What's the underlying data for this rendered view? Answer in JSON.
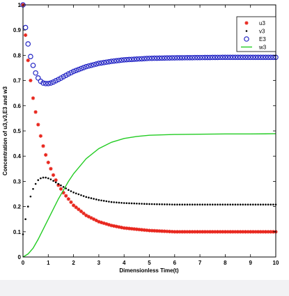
{
  "chart_data": {
    "type": "line",
    "title": "",
    "xlabel": "Dimensionless Time(t)",
    "ylabel": "Concentration of u3,v3,E3 and w3",
    "xlim": [
      0,
      10
    ],
    "ylim": [
      0,
      1
    ],
    "xticks": [
      "0",
      "1",
      "2",
      "3",
      "4",
      "5",
      "6",
      "7",
      "8",
      "9",
      "10"
    ],
    "yticks": [
      "0",
      "0.1",
      "0.2",
      "0.3",
      "0.4",
      "0.5",
      "0.6",
      "0.7",
      "0.8",
      "0.9",
      "1"
    ],
    "grid": false,
    "legend_position": "top-right",
    "series": [
      {
        "name": "u3",
        "marker": "star",
        "color": "#e8261d",
        "x": [
          0,
          0.1,
          0.2,
          0.3,
          0.4,
          0.5,
          0.6,
          0.7,
          0.8,
          0.9,
          1.0,
          1.2,
          1.4,
          1.6,
          1.8,
          2.0,
          2.5,
          3.0,
          3.5,
          4.0,
          5.0,
          6.0,
          7.0,
          8.0,
          9.0,
          10.0
        ],
        "y": [
          1.0,
          0.88,
          0.78,
          0.7,
          0.63,
          0.575,
          0.525,
          0.48,
          0.44,
          0.405,
          0.375,
          0.325,
          0.285,
          0.255,
          0.23,
          0.205,
          0.165,
          0.14,
          0.125,
          0.115,
          0.105,
          0.1,
          0.1,
          0.1,
          0.1,
          0.1
        ]
      },
      {
        "name": "v3",
        "marker": "dot",
        "color": "#000000",
        "x": [
          0,
          0.1,
          0.2,
          0.3,
          0.4,
          0.5,
          0.6,
          0.7,
          0.8,
          0.9,
          1.0,
          1.1,
          1.2,
          1.4,
          1.6,
          1.8,
          2.0,
          2.5,
          3.0,
          3.5,
          4.0,
          5.0,
          6.0,
          7.0,
          8.0,
          9.0,
          10.0
        ],
        "y": [
          0.09,
          0.15,
          0.2,
          0.24,
          0.27,
          0.29,
          0.305,
          0.312,
          0.315,
          0.315,
          0.312,
          0.308,
          0.302,
          0.29,
          0.278,
          0.266,
          0.256,
          0.238,
          0.226,
          0.218,
          0.214,
          0.21,
          0.208,
          0.208,
          0.208,
          0.208,
          0.208
        ]
      },
      {
        "name": "E3",
        "marker": "circle",
        "color": "#2224c4",
        "x": [
          0,
          0.1,
          0.2,
          0.3,
          0.4,
          0.5,
          0.6,
          0.7,
          0.8,
          0.9,
          1.0,
          1.1,
          1.2,
          1.4,
          1.6,
          1.8,
          2.0,
          2.5,
          3.0,
          3.5,
          4.0,
          5.0,
          6.0,
          7.0,
          8.0,
          9.0,
          10.0
        ],
        "y": [
          1.0,
          0.91,
          0.845,
          0.795,
          0.76,
          0.73,
          0.71,
          0.697,
          0.69,
          0.688,
          0.688,
          0.69,
          0.694,
          0.704,
          0.715,
          0.726,
          0.736,
          0.755,
          0.768,
          0.776,
          0.782,
          0.788,
          0.79,
          0.791,
          0.792,
          0.792,
          0.792
        ]
      },
      {
        "name": "w3",
        "marker": "line",
        "color": "#22cc22",
        "x": [
          0,
          0.2,
          0.4,
          0.6,
          0.8,
          1.0,
          1.2,
          1.4,
          1.6,
          1.8,
          2.0,
          2.5,
          3.0,
          3.5,
          4.0,
          4.5,
          5.0,
          6.0,
          7.0,
          8.0,
          9.0,
          10.0
        ],
        "y": [
          0,
          0.012,
          0.035,
          0.07,
          0.11,
          0.15,
          0.19,
          0.23,
          0.265,
          0.3,
          0.33,
          0.39,
          0.43,
          0.455,
          0.47,
          0.478,
          0.483,
          0.486,
          0.487,
          0.488,
          0.488,
          0.489
        ]
      }
    ]
  }
}
